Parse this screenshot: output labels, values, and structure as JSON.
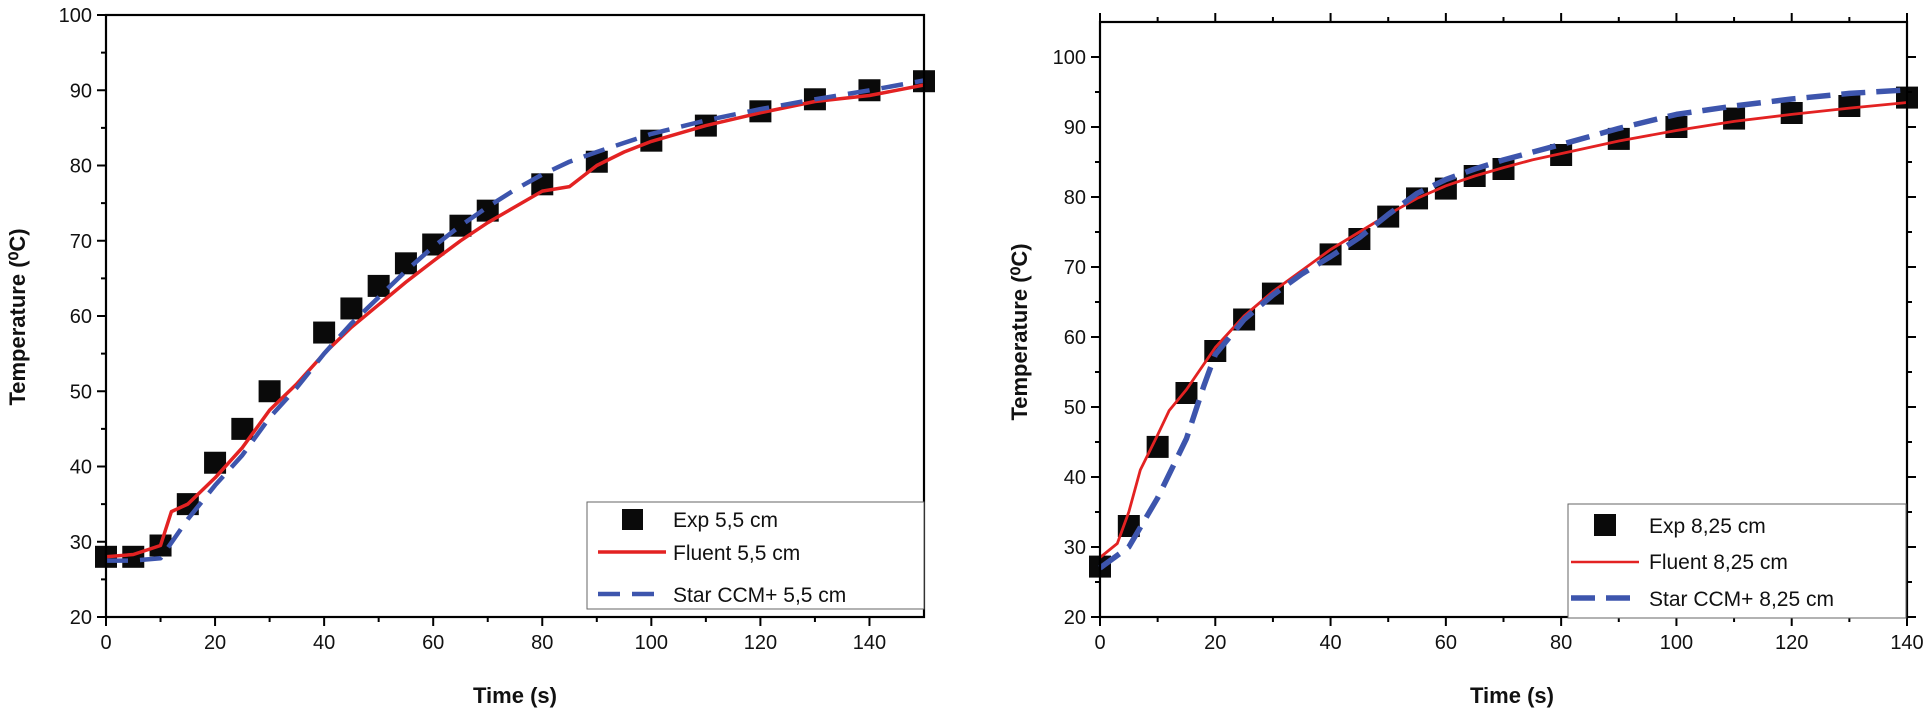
{
  "chart_data": [
    {
      "type": "line",
      "xlabel": "Time (s)",
      "ylabel": "Temperature (⁰C)",
      "xlim": [
        0,
        150
      ],
      "ylim": [
        20,
        100
      ],
      "xticks": [
        0,
        20,
        40,
        60,
        80,
        100,
        120,
        140
      ],
      "yticks": [
        20,
        30,
        40,
        50,
        60,
        70,
        80,
        90,
        100
      ],
      "legend_position": "bottom-right",
      "colors": {
        "exp": "#0a0a0a",
        "fluent": "#e32222",
        "star": "#3d55ad"
      },
      "series": [
        {
          "name": "Exp 5,5 cm",
          "style": "markers",
          "x": [
            0,
            5,
            10,
            15,
            20,
            25,
            30,
            40,
            45,
            50,
            55,
            60,
            65,
            70,
            80,
            90,
            100,
            110,
            120,
            130,
            140,
            150
          ],
          "y": [
            28,
            28,
            29.5,
            35,
            40.5,
            45,
            50,
            57.8,
            61,
            64,
            67,
            69.5,
            72,
            74,
            77.5,
            80.5,
            83.3,
            85.3,
            87.2,
            88.8,
            90,
            91.2
          ]
        },
        {
          "name": "Fluent 5,5 cm",
          "style": "solid",
          "x": [
            0,
            5,
            10,
            12,
            15,
            20,
            25,
            30,
            35,
            40,
            45,
            50,
            55,
            60,
            65,
            70,
            75,
            80,
            85,
            90,
            95,
            100,
            110,
            120,
            130,
            140,
            150
          ],
          "y": [
            28,
            28.3,
            29.5,
            34,
            35,
            38.5,
            42.5,
            47.5,
            51,
            55,
            58.5,
            61.5,
            64.5,
            67.3,
            70,
            72.4,
            74.5,
            76.6,
            77.2,
            80,
            81.8,
            83.2,
            85.3,
            87,
            88.5,
            89.3,
            90.7
          ]
        },
        {
          "name": "Star CCM+ 5,5 cm",
          "style": "dashed",
          "x": [
            0,
            5,
            10,
            15,
            20,
            25,
            30,
            35,
            40,
            45,
            50,
            55,
            60,
            65,
            70,
            75,
            80,
            85,
            90,
            95,
            100,
            110,
            120,
            130,
            140,
            150
          ],
          "y": [
            27.5,
            27.5,
            27.8,
            33,
            37.5,
            41.5,
            46.5,
            50.5,
            55,
            59,
            62.5,
            66,
            69.2,
            72,
            74.5,
            76.8,
            78.8,
            80.5,
            81.8,
            83,
            84.2,
            86,
            87.5,
            88.8,
            90,
            91.3
          ]
        }
      ],
      "legend": [
        "Exp 5,5 cm",
        "Fluent 5,5 cm",
        "Star CCM+ 5,5 cm"
      ]
    },
    {
      "type": "line",
      "xlabel": "Time (s)",
      "ylabel": "Temperature (⁰C)",
      "xlim": [
        0,
        140
      ],
      "ylim": [
        20,
        105
      ],
      "xticks": [
        0,
        20,
        40,
        60,
        80,
        100,
        120,
        140
      ],
      "yticks": [
        20,
        30,
        40,
        50,
        60,
        70,
        80,
        90,
        100
      ],
      "legend_position": "bottom-right",
      "colors": {
        "exp": "#0a0a0a",
        "fluent": "#e32222",
        "star": "#3d55ad"
      },
      "series": [
        {
          "name": "Exp 8,25 cm",
          "style": "markers",
          "x": [
            0,
            5,
            10,
            15,
            20,
            25,
            30,
            40,
            45,
            50,
            55,
            60,
            65,
            70,
            80,
            90,
            100,
            110,
            120,
            130,
            140
          ],
          "y": [
            27.2,
            33,
            44.3,
            52,
            58,
            62.5,
            66.2,
            71.8,
            74,
            77.2,
            79.8,
            81.2,
            83,
            84,
            86,
            88.3,
            90,
            91.2,
            92,
            93,
            94.2
          ]
        },
        {
          "name": "Fluent 8,25 cm",
          "style": "solid",
          "x": [
            0,
            3,
            5,
            7,
            10,
            12,
            15,
            20,
            25,
            30,
            35,
            40,
            45,
            50,
            55,
            60,
            65,
            70,
            75,
            80,
            90,
            100,
            110,
            120,
            130,
            140
          ],
          "y": [
            28.5,
            30.5,
            35,
            41,
            46,
            49.5,
            52.5,
            58.5,
            63,
            66.5,
            69.5,
            72.5,
            75,
            77.5,
            79.8,
            81.6,
            83,
            84.2,
            85.3,
            86.2,
            88,
            89.5,
            90.8,
            91.8,
            92.7,
            93.5
          ]
        },
        {
          "name": "Star CCM+ 8,25 cm",
          "style": "dashed",
          "x": [
            0,
            5,
            10,
            15,
            18,
            20,
            25,
            30,
            35,
            40,
            45,
            50,
            55,
            60,
            65,
            70,
            80,
            90,
            100,
            110,
            120,
            130,
            140
          ],
          "y": [
            27,
            30,
            37,
            45.5,
            53,
            57.5,
            62.5,
            66,
            69,
            71.5,
            74.2,
            77.5,
            80.5,
            82.5,
            84,
            85.3,
            87.5,
            89.8,
            91.8,
            93,
            94,
            94.8,
            95.3
          ]
        }
      ],
      "legend": [
        "Exp 8,25 cm",
        "Fluent 8,25 cm",
        "Star CCM+ 8,25 cm"
      ]
    }
  ]
}
